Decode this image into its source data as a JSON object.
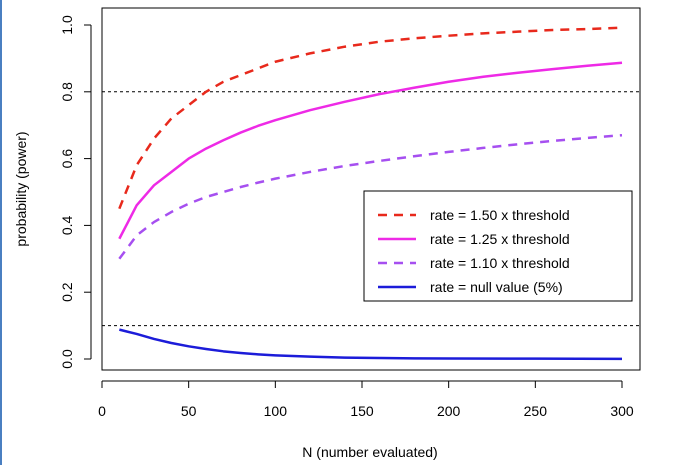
{
  "chart_data": {
    "type": "line",
    "title": "",
    "xlabel": "N (number evaluated)",
    "ylabel": "probability (power)",
    "xlim": [
      0,
      300
    ],
    "ylim": [
      0,
      1
    ],
    "xticks": [
      "0",
      "50",
      "100",
      "150",
      "200",
      "250",
      "300"
    ],
    "yticks": [
      "0.0",
      "0.2",
      "0.4",
      "0.6",
      "0.8",
      "1.0"
    ],
    "reference_lines": [
      0.8,
      0.1
    ],
    "legend_position": "right",
    "grid": false,
    "series": [
      {
        "name": "rate = 1.50 x threshold",
        "color": "#e8291c",
        "dash": "dashed",
        "x": [
          10,
          20,
          30,
          40,
          50,
          60,
          70,
          80,
          90,
          100,
          120,
          140,
          160,
          180,
          200,
          220,
          240,
          260,
          280,
          300
        ],
        "y": [
          0.45,
          0.58,
          0.66,
          0.72,
          0.76,
          0.8,
          0.83,
          0.85,
          0.87,
          0.89,
          0.915,
          0.935,
          0.95,
          0.96,
          0.968,
          0.975,
          0.98,
          0.985,
          0.988,
          0.992
        ]
      },
      {
        "name": "rate = 1.25 x threshold",
        "color": "#ee2ae6",
        "dash": "solid",
        "x": [
          10,
          20,
          30,
          40,
          50,
          60,
          70,
          80,
          90,
          100,
          120,
          140,
          160,
          180,
          200,
          220,
          240,
          260,
          280,
          300
        ],
        "y": [
          0.36,
          0.46,
          0.52,
          0.56,
          0.6,
          0.63,
          0.655,
          0.678,
          0.698,
          0.715,
          0.745,
          0.77,
          0.793,
          0.812,
          0.83,
          0.845,
          0.857,
          0.868,
          0.878,
          0.887
        ]
      },
      {
        "name": "rate = 1.10 x threshold",
        "color": "#a64ff0",
        "dash": "dashed",
        "x": [
          10,
          20,
          30,
          40,
          50,
          60,
          70,
          80,
          90,
          100,
          120,
          140,
          160,
          180,
          200,
          220,
          240,
          260,
          280,
          300
        ],
        "y": [
          0.3,
          0.37,
          0.41,
          0.44,
          0.465,
          0.485,
          0.5,
          0.515,
          0.528,
          0.54,
          0.56,
          0.578,
          0.593,
          0.607,
          0.62,
          0.632,
          0.643,
          0.653,
          0.662,
          0.67
        ]
      },
      {
        "name": "rate = null value (5%)",
        "color": "#1c1cd9",
        "dash": "solid",
        "x": [
          10,
          20,
          30,
          40,
          50,
          60,
          70,
          80,
          90,
          100,
          120,
          140,
          160,
          180,
          200,
          250,
          300
        ],
        "y": [
          0.088,
          0.075,
          0.06,
          0.048,
          0.038,
          0.03,
          0.023,
          0.018,
          0.014,
          0.011,
          0.007,
          0.004,
          0.003,
          0.002,
          0.0015,
          0.001,
          0.0005
        ]
      }
    ]
  }
}
